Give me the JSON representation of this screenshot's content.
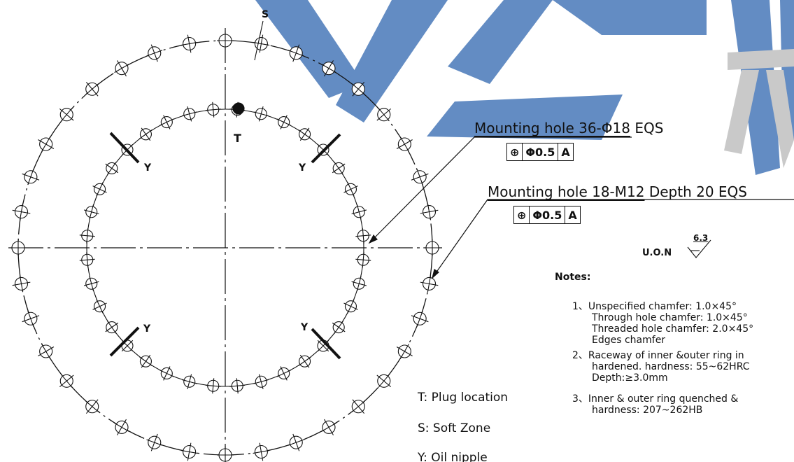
{
  "watermark": {
    "color": "#5b86c0"
  },
  "drawing": {
    "outer_hole_count": 36,
    "inner_hole_count": 18,
    "labels": {
      "s": "S",
      "t": "T",
      "y": "Y"
    }
  },
  "callouts": [
    {
      "prefix": "Mounting hole 36-Φ18",
      "suffix": " EQS",
      "fcf": {
        "symbol": "⊕",
        "tolerance": "Φ0.5",
        "datum": "A"
      }
    },
    {
      "prefix": "Mounting hole 18-M12",
      "suffix": " Depth 20 EQS",
      "fcf": {
        "symbol": "⊕",
        "tolerance": "Φ0.5",
        "datum": "A"
      }
    }
  ],
  "surface": {
    "label": "U.O.N",
    "value": "6.3"
  },
  "notes": {
    "title": "Notes:",
    "items": [
      [
        "1、Unspecified chamfer: 1.0×45°",
        "Through hole chamfer: 1.0×45°",
        "Threaded hole chamfer: 2.0×45°",
        "Edges chamfer"
      ],
      [
        "2、Raceway of inner &outer ring in",
        "hardened. hardness: 55~62HRC",
        "Depth:≥3.0mm"
      ],
      [
        "3、Inner & outer ring quenched &",
        "hardness: 207~262HB"
      ]
    ]
  },
  "legend": [
    "T: Plug location",
    "S: Soft Zone",
    "Y: Oil nipple"
  ]
}
